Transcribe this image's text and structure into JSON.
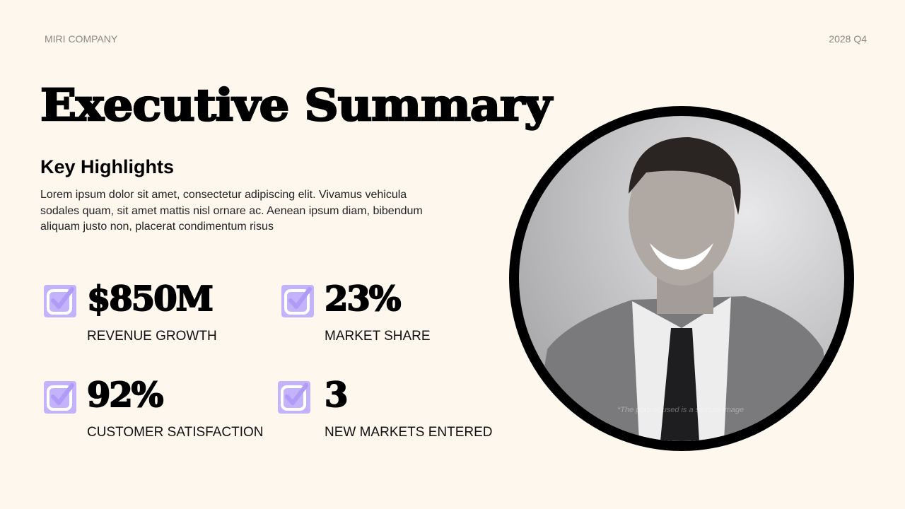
{
  "header": {
    "company": "MIRI COMPANY",
    "period": "2028 Q4"
  },
  "title": "Executive Summary",
  "subtitle": "Key Highlights",
  "body": "Lorem ipsum dolor sit amet, consectetur adipiscing elit. Vivamus vehicula sodales quam, sit amet mattis nisl ornare ac. Aenean ipsum diam, bibendum aliquam justo non, placerat condimentum risus",
  "stats": [
    {
      "value": "$850M",
      "label": "REVENUE GROWTH",
      "icon": "checkbox-checked-icon"
    },
    {
      "value": "23%",
      "label": "MARKET SHARE",
      "icon": "checkbox-checked-icon"
    },
    {
      "value": "92%",
      "label": "CUSTOMER SATISFACTION",
      "icon": "checkbox-checked-icon"
    },
    {
      "value": "3",
      "label": "NEW MARKETS ENTERED",
      "icon": "checkbox-checked-icon"
    }
  ],
  "photo": {
    "caption": "*The portrait used is a sample image"
  },
  "colors": {
    "background": "#fdf7ee",
    "accent": "#c3b3fb",
    "text": "#000000"
  }
}
